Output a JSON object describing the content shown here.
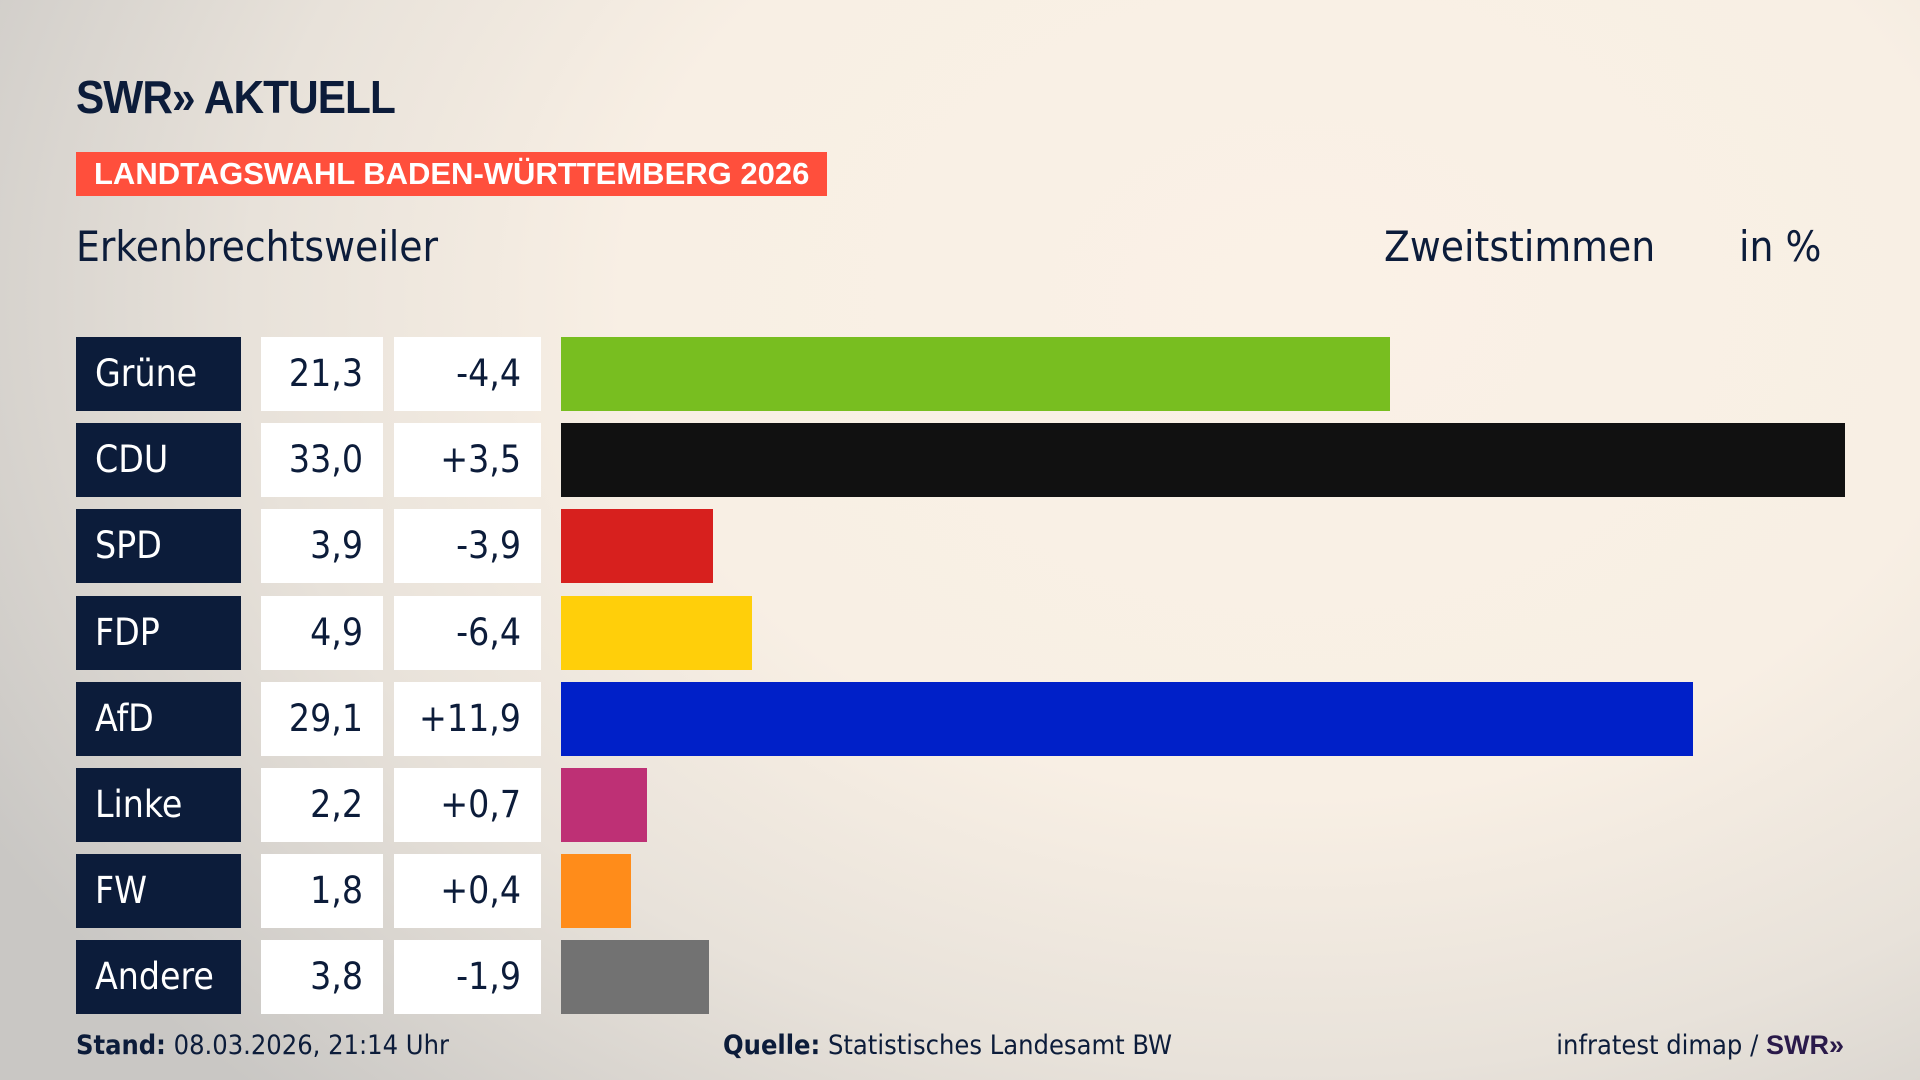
{
  "header": {
    "logo": "SWR» AKTUELL",
    "banner": "LANDTAGSWAHL BADEN-WÜRTTEMBERG 2026",
    "location": "Erkenbrechtsweiler",
    "measure": "Zweitstimmen",
    "unit": "in %"
  },
  "chart_data": {
    "type": "bar",
    "orientation": "horizontal",
    "categories": [
      "Grüne",
      "CDU",
      "SPD",
      "FDP",
      "AfD",
      "Linke",
      "FW",
      "Andere"
    ],
    "values": [
      21.3,
      33.0,
      3.9,
      4.9,
      29.1,
      2.2,
      1.8,
      3.8
    ],
    "value_labels": [
      "21,3",
      "33,0",
      "3,9",
      "4,9",
      "29,1",
      "2,2",
      "1,8",
      "3,8"
    ],
    "changes": [
      -4.4,
      3.5,
      -3.9,
      -6.4,
      11.9,
      0.7,
      0.4,
      -1.9
    ],
    "change_labels": [
      "-4,4",
      "+3,5",
      "-3,9",
      "-6,4",
      "+11,9",
      "+0,7",
      "+0,4",
      "-1,9"
    ],
    "colors": [
      "#78be20",
      "#111111",
      "#d7201e",
      "#ffcf0a",
      "#0020c8",
      "#be3075",
      "#ff8c1a",
      "#727272"
    ],
    "xlim": [
      0,
      33.0
    ],
    "grid": false
  },
  "footer": {
    "stand_label": "Stand:",
    "stand_value": "08.03.2026, 21:14 Uhr",
    "source_label": "Quelle:",
    "source_value": "Statistisches Landesamt BW",
    "credit": "infratest dimap /",
    "credit_logo": "SWR»"
  }
}
